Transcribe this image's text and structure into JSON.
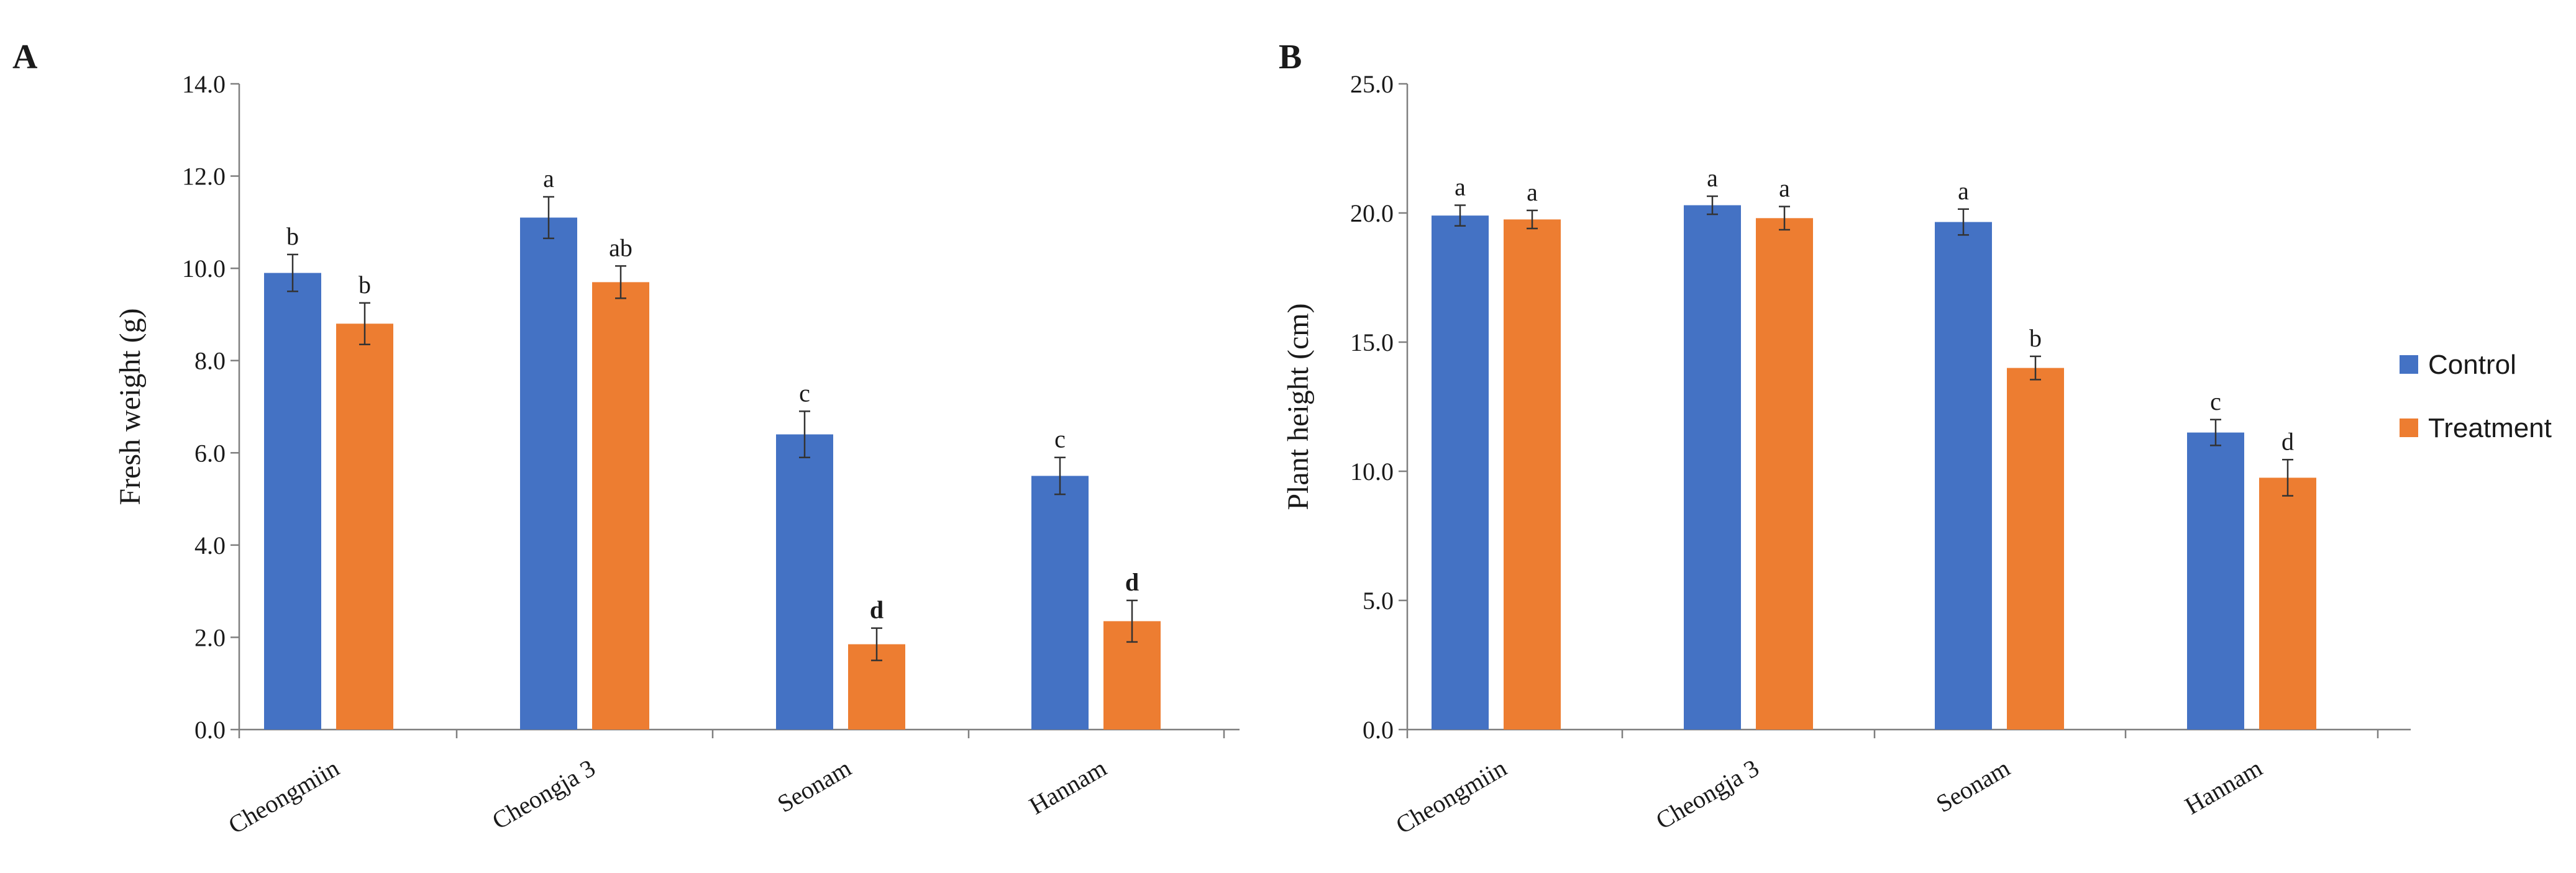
{
  "legend": {
    "items": [
      {
        "label": "Control",
        "color": "#4472c4"
      },
      {
        "label": "Treatment",
        "color": "#ed7d31"
      }
    ]
  },
  "chart_data": [
    {
      "panel": "A",
      "type": "bar",
      "ylabel": "Fresh weight (g)",
      "xlabel": "",
      "categories": [
        "Cheongmiin",
        "Cheongja 3",
        "Seonam",
        "Hannam"
      ],
      "ylim": [
        0,
        14
      ],
      "yticks": [
        0,
        2,
        4,
        6,
        8,
        10,
        12,
        14
      ],
      "ytick_labels": [
        "0.0",
        "2.0",
        "4.0",
        "6.0",
        "8.0",
        "10.0",
        "12.0",
        "14.0"
      ],
      "series": [
        {
          "name": "Control",
          "color": "#4472c4",
          "values": [
            9.9,
            11.1,
            6.4,
            5.5
          ],
          "errors": [
            0.4,
            0.45,
            0.5,
            0.4
          ],
          "labels": [
            "b",
            "a",
            "c",
            "c"
          ],
          "label_bold": [
            false,
            false,
            false,
            false
          ]
        },
        {
          "name": "Treatment",
          "color": "#ed7d31",
          "values": [
            8.8,
            9.7,
            1.85,
            2.35
          ],
          "errors": [
            0.45,
            0.35,
            0.35,
            0.45
          ],
          "labels": [
            "b",
            "ab",
            "d",
            "d"
          ],
          "label_bold": [
            false,
            false,
            true,
            true
          ]
        }
      ]
    },
    {
      "panel": "B",
      "type": "bar",
      "ylabel": "Plant height (cm)",
      "xlabel": "",
      "categories": [
        "Cheongmiin",
        "Cheongja 3",
        "Seonam",
        "Hannam"
      ],
      "ylim": [
        0,
        25
      ],
      "yticks": [
        0,
        5,
        10,
        15,
        20,
        25
      ],
      "ytick_labels": [
        "0.0",
        "5.0",
        "10.0",
        "15.0",
        "20.0",
        "25.0"
      ],
      "series": [
        {
          "name": "Control",
          "color": "#4472c4",
          "values": [
            19.9,
            20.3,
            19.65,
            11.5
          ],
          "errors": [
            0.4,
            0.35,
            0.5,
            0.5
          ],
          "labels": [
            "a",
            "a",
            "a",
            "c"
          ],
          "label_bold": [
            false,
            false,
            false,
            false
          ]
        },
        {
          "name": "Treatment",
          "color": "#ed7d31",
          "values": [
            19.75,
            19.8,
            14.0,
            9.75
          ],
          "errors": [
            0.35,
            0.45,
            0.45,
            0.7
          ],
          "labels": [
            "a",
            "a",
            "b",
            "d"
          ],
          "label_bold": [
            false,
            false,
            false,
            false
          ]
        }
      ]
    }
  ]
}
